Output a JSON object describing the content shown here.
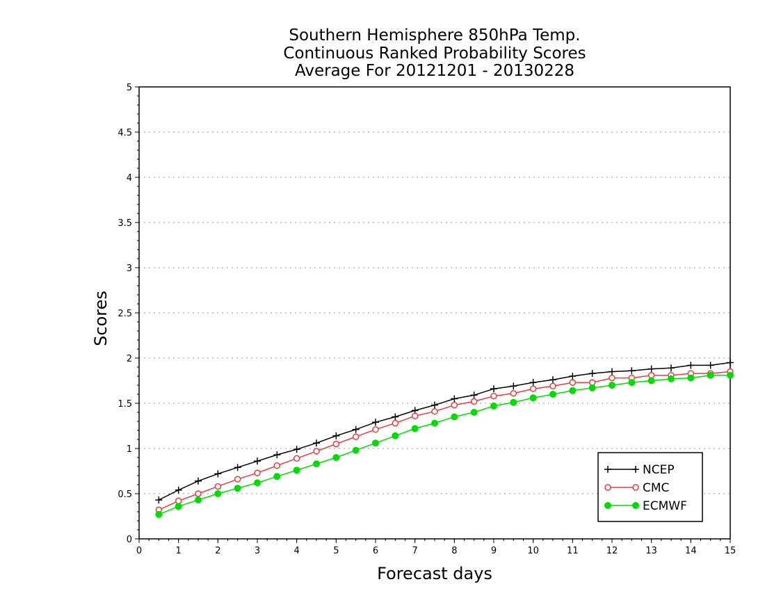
{
  "chart_data": {
    "type": "line",
    "title": [
      "Southern Hemisphere 850hPa Temp.",
      "Continuous Ranked Probability Scores",
      "Average For 20121201 - 20130228"
    ],
    "xlabel": "Forecast days",
    "ylabel": "Scores",
    "xlim": [
      0,
      15
    ],
    "ylim": [
      0,
      5
    ],
    "x_ticks": [
      0,
      1,
      2,
      3,
      4,
      5,
      6,
      7,
      8,
      9,
      10,
      11,
      12,
      13,
      14,
      15
    ],
    "x_tick_labels": [
      "0",
      "1",
      "2",
      "3",
      "4",
      "5",
      "6",
      "7",
      "8",
      "9",
      "10",
      "11",
      "12",
      "13",
      "14",
      "15"
    ],
    "y_ticks": [
      0,
      0.5,
      1,
      1.5,
      2,
      2.5,
      3,
      3.5,
      4,
      4.5,
      5
    ],
    "y_tick_labels": [
      "0",
      "0.5",
      "1",
      "1.5",
      "2",
      "2.5",
      "3",
      "3.5",
      "4",
      "4.5",
      "5"
    ],
    "grid": "horizontal dotted",
    "legend_position": "bottom-right",
    "x": [
      0.5,
      1,
      1.5,
      2,
      2.5,
      3,
      3.5,
      4,
      4.5,
      5,
      5.5,
      6,
      6.5,
      7,
      7.5,
      8,
      8.5,
      9,
      9.5,
      10,
      10.5,
      11,
      11.5,
      12,
      12.5,
      13,
      13.5,
      14,
      14.5,
      15
    ],
    "series": [
      {
        "name": "NCEP",
        "color": "#000000",
        "marker": "plus",
        "values": [
          0.43,
          0.54,
          0.64,
          0.72,
          0.79,
          0.86,
          0.93,
          0.99,
          1.06,
          1.14,
          1.21,
          1.29,
          1.35,
          1.42,
          1.48,
          1.55,
          1.59,
          1.66,
          1.69,
          1.73,
          1.76,
          1.8,
          1.83,
          1.85,
          1.86,
          1.88,
          1.89,
          1.92,
          1.92,
          1.95
        ]
      },
      {
        "name": "CMC",
        "color": "#e83c3c",
        "marker": "open-circle",
        "values": [
          0.32,
          0.42,
          0.5,
          0.58,
          0.66,
          0.73,
          0.81,
          0.89,
          0.97,
          1.05,
          1.13,
          1.21,
          1.28,
          1.36,
          1.41,
          1.48,
          1.52,
          1.58,
          1.61,
          1.66,
          1.69,
          1.73,
          1.73,
          1.78,
          1.78,
          1.81,
          1.81,
          1.83,
          1.83,
          1.85
        ]
      },
      {
        "name": "ECMWF",
        "color": "#00dc00",
        "marker": "filled-circle",
        "values": [
          0.27,
          0.36,
          0.43,
          0.5,
          0.56,
          0.62,
          0.69,
          0.76,
          0.83,
          0.9,
          0.98,
          1.06,
          1.14,
          1.22,
          1.28,
          1.35,
          1.4,
          1.47,
          1.51,
          1.56,
          1.6,
          1.64,
          1.67,
          1.7,
          1.73,
          1.75,
          1.77,
          1.78,
          1.81,
          1.81
        ]
      }
    ]
  }
}
